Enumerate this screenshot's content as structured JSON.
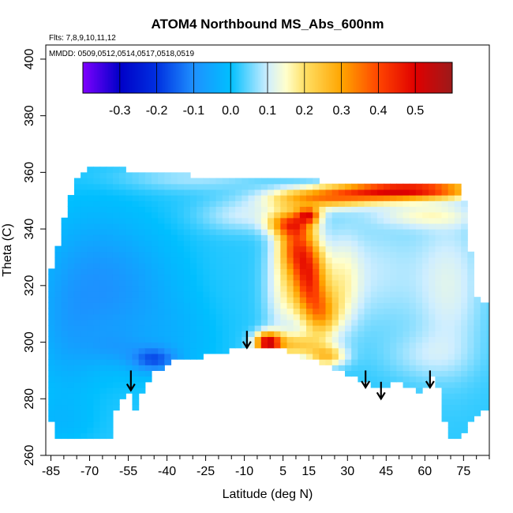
{
  "chart_data": {
    "type": "heatmap",
    "title": "ATOM4 Northbound MS_Abs_600nm",
    "flights_note": "Flts: 7,8,9,10,11,12",
    "dates_note": "MMDD: 0509,0512,0514,0517,0518,0519",
    "xlabel": "Latitude (deg N)",
    "ylabel": "Theta (C)",
    "xlim": [
      -87,
      85
    ],
    "ylim": [
      260,
      405
    ],
    "x_ticks": [
      -85,
      -70,
      -55,
      -40,
      -25,
      -10,
      5,
      15,
      30,
      45,
      60,
      75
    ],
    "x_ticks_minor": [
      -80,
      -75,
      -65,
      -60,
      -50,
      -45,
      -35,
      -30,
      -20,
      -15,
      -5,
      0,
      10,
      20,
      25,
      35,
      40,
      50,
      55,
      65,
      70,
      80,
      85
    ],
    "y_ticks": [
      260,
      280,
      300,
      320,
      340,
      360,
      380,
      400
    ],
    "colorbar": {
      "range": [
        -0.4,
        0.6
      ],
      "ticks": [
        -0.3,
        -0.2,
        -0.1,
        0.0,
        0.1,
        0.2,
        0.3,
        0.4,
        0.5
      ],
      "tick_labels": [
        "-0.3",
        "-0.2",
        "-0.1",
        "0.0",
        "0.1",
        "0.2",
        "0.3",
        "0.4",
        "0.5"
      ],
      "stops": [
        {
          "v": -0.4,
          "c": "#7f00ff"
        },
        {
          "v": -0.3,
          "c": "#0000c8"
        },
        {
          "v": -0.2,
          "c": "#0030e0"
        },
        {
          "v": -0.1,
          "c": "#1e90ff"
        },
        {
          "v": 0.0,
          "c": "#00bfff"
        },
        {
          "v": 0.1,
          "c": "#cfeeff"
        },
        {
          "v": 0.15,
          "c": "#ffffcc"
        },
        {
          "v": 0.2,
          "c": "#ffe066"
        },
        {
          "v": 0.3,
          "c": "#ffa500"
        },
        {
          "v": 0.4,
          "c": "#ff4500"
        },
        {
          "v": 0.5,
          "c": "#e00000"
        },
        {
          "v": 0.6,
          "c": "#9c1a1a"
        }
      ]
    },
    "field": {
      "base_value": 0.02,
      "blobs": [
        {
          "x": -70,
          "y": 320,
          "sx": 14,
          "sy": 18,
          "v": -0.09
        },
        {
          "x": -50,
          "y": 318,
          "sx": 14,
          "sy": 16,
          "v": -0.05
        },
        {
          "x": -80,
          "y": 300,
          "sx": 8,
          "sy": 15,
          "v": -0.04
        },
        {
          "x": -35,
          "y": 300,
          "sx": 12,
          "sy": 10,
          "v": -0.03
        },
        {
          "x": -45,
          "y": 294,
          "sx": 6,
          "sy": 3,
          "v": -0.15
        },
        {
          "x": -60,
          "y": 298,
          "sx": 8,
          "sy": 4,
          "v": -0.04
        },
        {
          "x": -30,
          "y": 358,
          "sx": 20,
          "sy": 3,
          "v": 0.06
        },
        {
          "x": -10,
          "y": 345,
          "sx": 12,
          "sy": 4,
          "v": 0.08
        },
        {
          "x": 15,
          "y": 323,
          "sx": 4.5,
          "sy": 9,
          "v": 0.38
        },
        {
          "x": 10,
          "y": 334,
          "sx": 4.5,
          "sy": 6,
          "v": 0.25
        },
        {
          "x": 20,
          "y": 310,
          "sx": 4.5,
          "sy": 6,
          "v": 0.22
        },
        {
          "x": 8,
          "y": 342,
          "sx": 6,
          "sy": 3,
          "v": 0.28
        },
        {
          "x": 15,
          "y": 345,
          "sx": 3,
          "sy": 1.8,
          "v": 0.32
        },
        {
          "x": -1,
          "y": 300,
          "sx": 3.5,
          "sy": 2.5,
          "v": 0.45
        },
        {
          "x": 10,
          "y": 299,
          "sx": 8,
          "sy": 3,
          "v": 0.18
        },
        {
          "x": 22,
          "y": 295,
          "sx": 5,
          "sy": 2.5,
          "v": 0.2
        },
        {
          "x": 55,
          "y": 354,
          "sx": 18,
          "sy": 2.2,
          "v": 0.42
        },
        {
          "x": 30,
          "y": 352,
          "sx": 18,
          "sy": 2.4,
          "v": 0.22
        },
        {
          "x": 15,
          "y": 350,
          "sx": 12,
          "sy": 2.5,
          "v": 0.15
        },
        {
          "x": 60,
          "y": 345,
          "sx": 14,
          "sy": 3,
          "v": 0.1
        },
        {
          "x": 5,
          "y": 320,
          "sx": 5,
          "sy": 14,
          "v": 0.12
        },
        {
          "x": 28,
          "y": 320,
          "sx": 5,
          "sy": 12,
          "v": 0.1
        },
        {
          "x": 40,
          "y": 325,
          "sx": 14,
          "sy": 15,
          "v": 0.07
        },
        {
          "x": 70,
          "y": 320,
          "sx": 10,
          "sy": 20,
          "v": 0.09
        },
        {
          "x": 60,
          "y": 295,
          "sx": 12,
          "sy": 6,
          "v": 0.05
        },
        {
          "x": -82,
          "y": 272,
          "sx": 10,
          "sy": 6,
          "v": -0.03
        }
      ],
      "top_boundary": [
        [
          -85,
          326
        ],
        [
          -82,
          334
        ],
        [
          -79,
          346
        ],
        [
          -76,
          357
        ],
        [
          -72,
          361
        ],
        [
          -55,
          361
        ],
        [
          -30,
          359
        ],
        [
          -5,
          358
        ],
        [
          20,
          357
        ],
        [
          50,
          356
        ],
        [
          68,
          355
        ],
        [
          73,
          356
        ],
        [
          75,
          352
        ],
        [
          78,
          330
        ],
        [
          80,
          316
        ],
        [
          82,
          314
        ],
        [
          85,
          314
        ]
      ],
      "bottom_boundary": [
        [
          -85,
          272
        ],
        [
          -82,
          266
        ],
        [
          -78,
          266
        ],
        [
          -60,
          266
        ],
        [
          -60,
          276
        ],
        [
          -58,
          279
        ],
        [
          -56,
          282
        ],
        [
          -54,
          282
        ],
        [
          -52,
          276
        ],
        [
          -49,
          283
        ],
        [
          -46,
          289
        ],
        [
          -40,
          292
        ],
        [
          -32,
          295
        ],
        [
          -25,
          295
        ],
        [
          -15,
          297
        ],
        [
          -5,
          299
        ],
        [
          5,
          298
        ],
        [
          15,
          294
        ],
        [
          25,
          291
        ],
        [
          35,
          287
        ],
        [
          40,
          285
        ],
        [
          45,
          284
        ],
        [
          50,
          286
        ],
        [
          55,
          284
        ],
        [
          58,
          281
        ],
        [
          59,
          268
        ],
        [
          60,
          283
        ],
        [
          63,
          289
        ],
        [
          65,
          284
        ],
        [
          67,
          277
        ],
        [
          69,
          266
        ],
        [
          73,
          266
        ],
        [
          76,
          270
        ],
        [
          80,
          274
        ],
        [
          85,
          276
        ]
      ]
    },
    "arrows": [
      {
        "x": -54,
        "y_top": 290,
        "y_tip": 283
      },
      {
        "x": -9,
        "y_top": 304,
        "y_tip": 298
      },
      {
        "x": 37,
        "y_top": 290,
        "y_tip": 284
      },
      {
        "x": 43,
        "y_top": 286,
        "y_tip": 280
      },
      {
        "x": 62,
        "y_top": 290,
        "y_tip": 284
      }
    ]
  }
}
